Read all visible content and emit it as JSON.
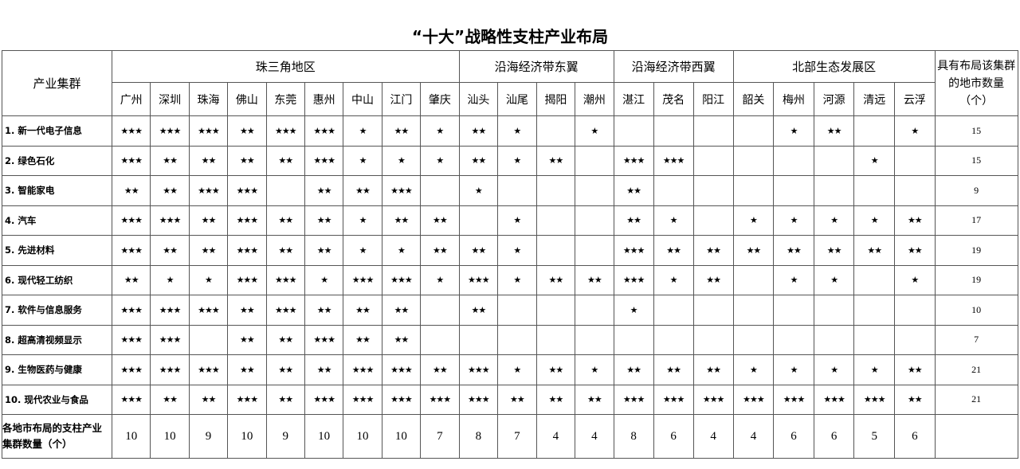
{
  "title": "“十大”战略性支柱产业布局",
  "header": {
    "corner": "产业集群",
    "count_col": "具有布局该集群的地市数量（个）",
    "regions": [
      {
        "name": "珠三角地区",
        "cities": [
          "广州",
          "深圳",
          "珠海",
          "佛山",
          "东莞",
          "惠州",
          "中山",
          "江门",
          "肇庆"
        ]
      },
      {
        "name": "沿海经济带东翼",
        "cities": [
          "汕头",
          "汕尾",
          "揭阳",
          "潮州"
        ]
      },
      {
        "name": "沿海经济带西翼",
        "cities": [
          "湛江",
          "茂名",
          "阳江"
        ]
      },
      {
        "name": "北部生态发展区",
        "cities": [
          "韶关",
          "梅州",
          "河源",
          "清远",
          "云浮"
        ]
      }
    ]
  },
  "rows": [
    {
      "label": "1. 新一代电子信息",
      "cells": [
        "★★★",
        "★★★",
        "★★★",
        "★★",
        "★★★",
        "★★★",
        "★",
        "★★",
        "★",
        "★★",
        "★",
        "",
        "★",
        "",
        "",
        "",
        "",
        "★",
        "★★",
        "",
        "★"
      ],
      "count": "15"
    },
    {
      "label": "2. 绿色石化",
      "cells": [
        "★★★",
        "★★",
        "★★",
        "★★",
        "★★",
        "★★★",
        "★",
        "★",
        "★",
        "★★",
        "★",
        "★★",
        "",
        "★★★",
        "★★★",
        "",
        "",
        "",
        "",
        "★",
        ""
      ],
      "count": "15"
    },
    {
      "label": "3. 智能家电",
      "cells": [
        "★★",
        "★★",
        "★★★",
        "★★★",
        "",
        "★★",
        "★★",
        "★★★",
        "",
        "★",
        "",
        "",
        "",
        "★★",
        "",
        "",
        "",
        "",
        "",
        "",
        ""
      ],
      "count": "9"
    },
    {
      "label": "4. 汽车",
      "cells": [
        "★★★",
        "★★★",
        "★★",
        "★★★",
        "★★",
        "★★",
        "★",
        "★★",
        "★★",
        "",
        "★",
        "",
        "",
        "★★",
        "★",
        "",
        "★",
        "★",
        "★",
        "★",
        "★★"
      ],
      "count": "17"
    },
    {
      "label": "5. 先进材料",
      "cells": [
        "★★★",
        "★★",
        "★★",
        "★★★",
        "★★",
        "★★",
        "★",
        "★",
        "★★",
        "★★",
        "★",
        "",
        "",
        "★★★",
        "★★",
        "★★",
        "★★",
        "★★",
        "★★",
        "★★",
        "★★"
      ],
      "count": "19"
    },
    {
      "label": "6. 现代轻工纺织",
      "cells": [
        "★★",
        "★",
        "★",
        "★★★",
        "★★★",
        "★",
        "★★★",
        "★★★",
        "★",
        "★★★",
        "★",
        "★★",
        "★★",
        "★★★",
        "★",
        "★★",
        "",
        "★",
        "★",
        "",
        "★"
      ],
      "count": "19"
    },
    {
      "label": "7. 软件与信息服务",
      "cells": [
        "★★★",
        "★★★",
        "★★★",
        "★★",
        "★★★",
        "★★",
        "★★",
        "★★",
        "",
        "★★",
        "",
        "",
        "",
        "★",
        "",
        "",
        "",
        "",
        "",
        "",
        ""
      ],
      "count": "10"
    },
    {
      "label": "8. 超高清视频显示",
      "cells": [
        "★★★",
        "★★★",
        "",
        "★★",
        "★★",
        "★★★",
        "★★",
        "★★",
        "",
        "",
        "",
        "",
        "",
        "",
        "",
        "",
        "",
        "",
        "",
        "",
        ""
      ],
      "count": "7"
    },
    {
      "label": "9. 生物医药与健康",
      "cells": [
        "★★★",
        "★★★",
        "★★★",
        "★★",
        "★★",
        "★★",
        "★★★",
        "★★★",
        "★★",
        "★★★",
        "★",
        "★★",
        "★",
        "★★",
        "★★",
        "★★",
        "★",
        "★",
        "★",
        "★",
        "★★"
      ],
      "count": "21"
    },
    {
      "label": "10. 现代农业与食品",
      "cells": [
        "★★★",
        "★★",
        "★★",
        "★★★",
        "★★",
        "★★★",
        "★★★",
        "★★★",
        "★★★",
        "★★★",
        "★★",
        "★★",
        "★★",
        "★★★",
        "★★★",
        "★★★",
        "★★★",
        "★★★",
        "★★★",
        "★★★",
        "★★"
      ],
      "count": "21"
    }
  ],
  "totals": {
    "label": "各地市布局的支柱产业集群数量（个）",
    "values": [
      "10",
      "10",
      "9",
      "10",
      "9",
      "10",
      "10",
      "10",
      "7",
      "8",
      "7",
      "4",
      "4",
      "8",
      "6",
      "4",
      "4",
      "6",
      "6",
      "5",
      "6"
    ]
  }
}
